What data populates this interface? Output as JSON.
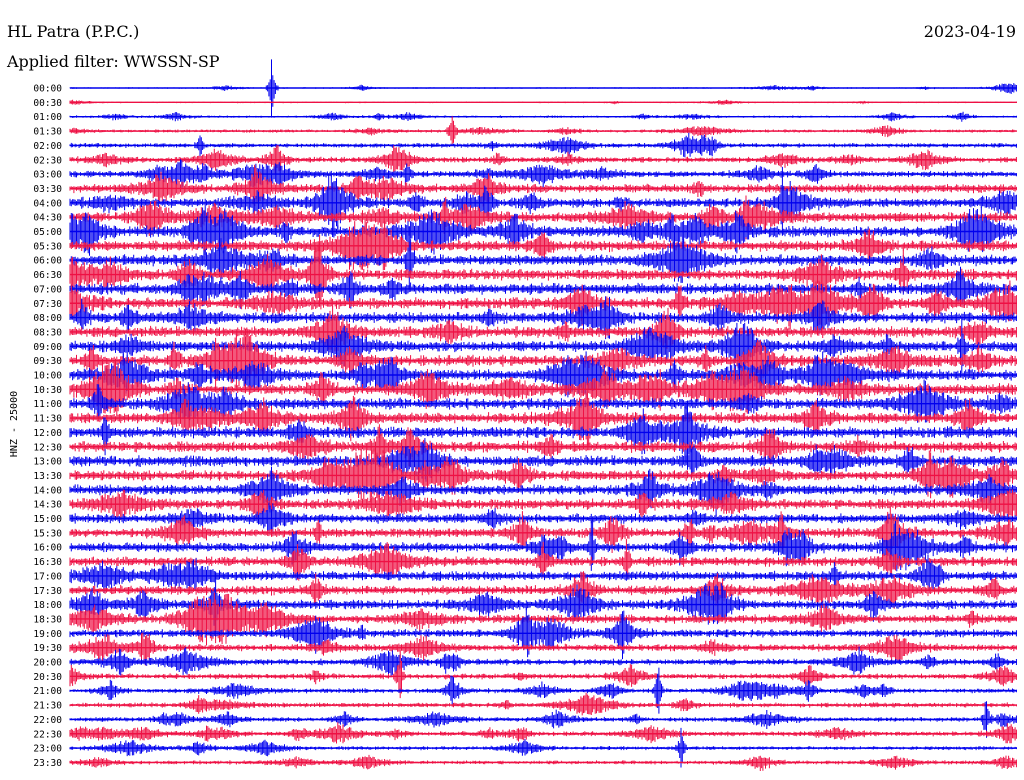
{
  "header": {
    "station": "HL Patra (P.P.C.)",
    "filter": "Applied filter: WWSSN-SP",
    "date": "2023-04-19"
  },
  "chart_data": {
    "type": "helicorder",
    "title": "HL Patra (P.P.C.)",
    "subtitle": "Applied filter: WWSSN-SP",
    "date": "2023-04-19",
    "ylabel": "HNZ - 25000",
    "row_labels": [
      "00:00",
      "00:30",
      "01:00",
      "01:30",
      "02:00",
      "02:30",
      "03:00",
      "03:30",
      "04:00",
      "04:30",
      "05:00",
      "05:30",
      "06:00",
      "06:30",
      "07:00",
      "07:30",
      "08:00",
      "08:30",
      "09:00",
      "09:30",
      "10:00",
      "10:30",
      "11:00",
      "11:30",
      "12:00",
      "12:30",
      "13:00",
      "13:30",
      "14:00",
      "14:30",
      "15:00",
      "15:30",
      "16:00",
      "16:30",
      "17:00",
      "17:30",
      "18:00",
      "18:30",
      "19:00",
      "19:30",
      "20:00",
      "20:30",
      "21:00",
      "21:30",
      "22:00",
      "22:30",
      "23:00",
      "23:30"
    ],
    "row_amplitude": [
      1,
      1,
      1.5,
      2,
      3,
      3.5,
      4,
      5.5,
      6,
      6.5,
      7,
      7,
      7,
      7,
      7,
      7,
      7,
      7,
      7,
      7,
      7,
      7,
      7,
      7,
      7,
      7,
      7,
      6.5,
      6.5,
      6.5,
      6,
      6,
      6,
      6,
      6,
      6,
      6,
      5.5,
      5,
      4.5,
      4,
      3.5,
      3,
      3,
      3,
      3,
      2.5,
      2.5
    ],
    "series_colors": [
      "#0000ee",
      "#ee1144"
    ]
  }
}
